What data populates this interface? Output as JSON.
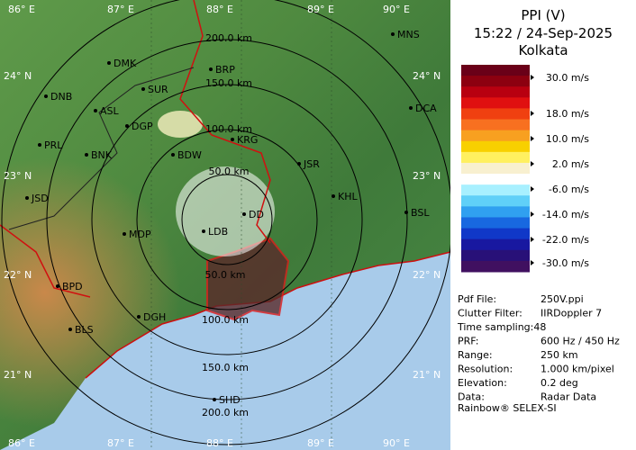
{
  "map": {
    "longitudes": [
      "86° E",
      "87° E",
      "88° E",
      "89° E",
      "90° E"
    ],
    "latitudes": [
      "24° N",
      "23° N",
      "22° N",
      "21° N"
    ],
    "cities": [
      "MNS",
      "DMK",
      "BRP",
      "DNB",
      "SUR",
      "ASL",
      "DCA",
      "DGP",
      "KRG",
      "PRL",
      "BNK",
      "BDW",
      "JSR",
      "KHL",
      "JSD",
      "DD",
      "BSL",
      "MDP",
      "LDB",
      "BPD",
      "DGH",
      "BLS",
      "SHD"
    ],
    "range_labels_top": [
      "200.0 km",
      "150.0 km",
      "100.0 km",
      "50.0 km"
    ],
    "range_labels_bottom": [
      "50.0 km",
      "100.0 km",
      "150.0 km",
      "200.0 km"
    ]
  },
  "panel": {
    "title": "PPI (V)",
    "time": "15:22 / 24-Sep-2025",
    "station": "Kolkata",
    "legend_labels": [
      "30.0 m/s",
      "18.0 m/s",
      "10.0 m/s",
      "2.0 m/s",
      "-6.0 m/s",
      "-14.0 m/s",
      "-22.0 m/s",
      "-30.0 m/s"
    ],
    "legend_colors": [
      "#6a0018",
      "#8c0010",
      "#b80010",
      "#e01010",
      "#f04010",
      "#f87020",
      "#f8a020",
      "#f8d000",
      "#fff060",
      "#f8f0d0",
      "#ffffff",
      "#a8f0ff",
      "#60d0f8",
      "#30a0f0",
      "#1868e0",
      "#1038c8",
      "#1818a0",
      "#281078",
      "#401060"
    ],
    "info": [
      [
        "Pdf File:",
        "250V.ppi"
      ],
      [
        "Clutter Filter:",
        "IIRDoppler 7"
      ],
      [
        "Time sampling:48",
        ""
      ],
      [
        "PRF:",
        "600 Hz / 450 Hz"
      ],
      [
        "Range:",
        "250 km"
      ],
      [
        "Resolution:",
        "1.000 km/pixel"
      ],
      [
        "Elevation:",
        "0.2 deg"
      ],
      [
        "Data:",
        "Radar Data"
      ]
    ],
    "footer": "Rainbow® SELEX-SI"
  }
}
